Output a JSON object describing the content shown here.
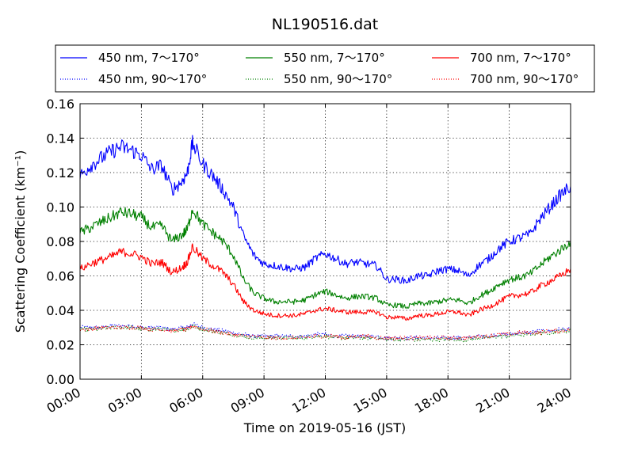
{
  "chart_data": {
    "type": "line",
    "title": "NL190516.dat",
    "xlabel": "Time on 2019-05-16 (JST)",
    "ylabel": "Scattering Coefficient (km⁻¹)",
    "xlim": [
      "00:00",
      "24:00"
    ],
    "ylim": [
      0,
      0.16
    ],
    "grid": true,
    "legend": {
      "placement": "top",
      "columns": 3
    },
    "x_tick_labels": [
      "00:00",
      "03:00",
      "06:00",
      "09:00",
      "12:00",
      "15:00",
      "18:00",
      "21:00",
      "24:00"
    ],
    "y_tick_labels": [
      "0.00",
      "0.02",
      "0.04",
      "0.06",
      "0.08",
      "0.10",
      "0.12",
      "0.14",
      "0.16"
    ],
    "x_units": "hours",
    "x": [
      0,
      0.5,
      1,
      1.5,
      2,
      2.5,
      3,
      3.5,
      4,
      4.5,
      5,
      5.25,
      5.5,
      6,
      6.5,
      7,
      7.5,
      8,
      8.5,
      9,
      9.5,
      10,
      10.5,
      11,
      11.5,
      12,
      12.5,
      13,
      13.5,
      14,
      14.5,
      15,
      15.5,
      16,
      16.5,
      17,
      17.5,
      18,
      18.5,
      19,
      19.5,
      20,
      20.5,
      21,
      21.5,
      22,
      22.5,
      23,
      23.5,
      24
    ],
    "series": [
      {
        "name": "450 nm, 7～170°",
        "color": "#0000ff",
        "style": "solid",
        "values": [
          0.118,
          0.124,
          0.128,
          0.132,
          0.135,
          0.133,
          0.13,
          0.122,
          0.124,
          0.11,
          0.115,
          0.12,
          0.137,
          0.125,
          0.118,
          0.11,
          0.1,
          0.083,
          0.072,
          0.067,
          0.066,
          0.065,
          0.064,
          0.065,
          0.07,
          0.073,
          0.07,
          0.067,
          0.068,
          0.067,
          0.066,
          0.058,
          0.058,
          0.057,
          0.06,
          0.06,
          0.063,
          0.064,
          0.063,
          0.06,
          0.066,
          0.07,
          0.076,
          0.08,
          0.082,
          0.084,
          0.093,
          0.1,
          0.107,
          0.112
        ]
      },
      {
        "name": "550 nm, 7～170°",
        "color": "#008000",
        "style": "solid",
        "values": [
          0.085,
          0.088,
          0.091,
          0.094,
          0.097,
          0.096,
          0.094,
          0.088,
          0.089,
          0.08,
          0.084,
          0.087,
          0.099,
          0.09,
          0.085,
          0.08,
          0.072,
          0.058,
          0.05,
          0.047,
          0.045,
          0.045,
          0.045,
          0.046,
          0.049,
          0.051,
          0.049,
          0.047,
          0.048,
          0.048,
          0.047,
          0.043,
          0.043,
          0.042,
          0.044,
          0.044,
          0.045,
          0.046,
          0.046,
          0.044,
          0.048,
          0.051,
          0.055,
          0.058,
          0.059,
          0.061,
          0.066,
          0.071,
          0.075,
          0.08
        ]
      },
      {
        "name": "700 nm, 7～170°",
        "color": "#ff0000",
        "style": "solid",
        "values": [
          0.064,
          0.067,
          0.069,
          0.071,
          0.074,
          0.073,
          0.071,
          0.067,
          0.068,
          0.062,
          0.065,
          0.068,
          0.077,
          0.07,
          0.066,
          0.062,
          0.055,
          0.045,
          0.04,
          0.038,
          0.037,
          0.037,
          0.037,
          0.038,
          0.04,
          0.041,
          0.04,
          0.039,
          0.039,
          0.039,
          0.039,
          0.036,
          0.036,
          0.035,
          0.037,
          0.037,
          0.038,
          0.039,
          0.039,
          0.037,
          0.04,
          0.042,
          0.045,
          0.048,
          0.049,
          0.05,
          0.054,
          0.057,
          0.06,
          0.064
        ]
      },
      {
        "name": "450 nm, 90～170°",
        "color": "#0000ff",
        "style": "dotted",
        "values": [
          0.03,
          0.03,
          0.03,
          0.031,
          0.031,
          0.031,
          0.03,
          0.03,
          0.03,
          0.029,
          0.03,
          0.03,
          0.032,
          0.03,
          0.029,
          0.028,
          0.027,
          0.026,
          0.025,
          0.025,
          0.025,
          0.025,
          0.025,
          0.025,
          0.026,
          0.026,
          0.025,
          0.025,
          0.025,
          0.025,
          0.025,
          0.024,
          0.024,
          0.024,
          0.024,
          0.024,
          0.024,
          0.024,
          0.024,
          0.024,
          0.025,
          0.025,
          0.026,
          0.026,
          0.027,
          0.027,
          0.028,
          0.028,
          0.029,
          0.029
        ]
      },
      {
        "name": "550 nm, 90～170°",
        "color": "#008000",
        "style": "dotted",
        "values": [
          0.029,
          0.029,
          0.029,
          0.03,
          0.03,
          0.03,
          0.029,
          0.029,
          0.029,
          0.028,
          0.029,
          0.029,
          0.031,
          0.029,
          0.028,
          0.027,
          0.026,
          0.025,
          0.024,
          0.024,
          0.024,
          0.024,
          0.024,
          0.024,
          0.025,
          0.025,
          0.024,
          0.024,
          0.024,
          0.024,
          0.024,
          0.023,
          0.023,
          0.023,
          0.023,
          0.023,
          0.023,
          0.023,
          0.023,
          0.023,
          0.024,
          0.024,
          0.025,
          0.025,
          0.026,
          0.026,
          0.027,
          0.027,
          0.028,
          0.028
        ]
      },
      {
        "name": "700 nm, 90～170°",
        "color": "#ff0000",
        "style": "dotted",
        "values": [
          0.029,
          0.029,
          0.03,
          0.03,
          0.03,
          0.03,
          0.03,
          0.029,
          0.029,
          0.028,
          0.029,
          0.029,
          0.031,
          0.029,
          0.028,
          0.027,
          0.026,
          0.025,
          0.025,
          0.024,
          0.024,
          0.024,
          0.024,
          0.024,
          0.025,
          0.025,
          0.025,
          0.024,
          0.025,
          0.025,
          0.024,
          0.024,
          0.024,
          0.024,
          0.024,
          0.024,
          0.024,
          0.024,
          0.024,
          0.024,
          0.025,
          0.025,
          0.026,
          0.026,
          0.027,
          0.027,
          0.027,
          0.028,
          0.028,
          0.029
        ]
      }
    ]
  }
}
